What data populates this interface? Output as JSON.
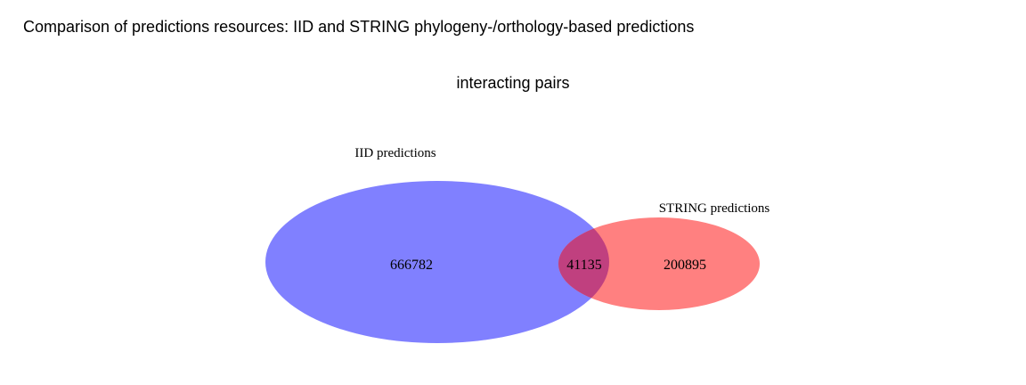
{
  "page": {
    "title": "Comparison of predictions resources: IID and STRING phylogeny-/orthology-based predictions",
    "subtitle": "interacting pairs"
  },
  "venn": {
    "sets": [
      {
        "name": "IID predictions",
        "only_count": "666782",
        "color": "#8080ff"
      },
      {
        "name": "STRING predictions",
        "only_count": "200895",
        "color": "#ff8080"
      }
    ],
    "intersection_count": "41135",
    "intersection_color": "#c0407f"
  }
}
